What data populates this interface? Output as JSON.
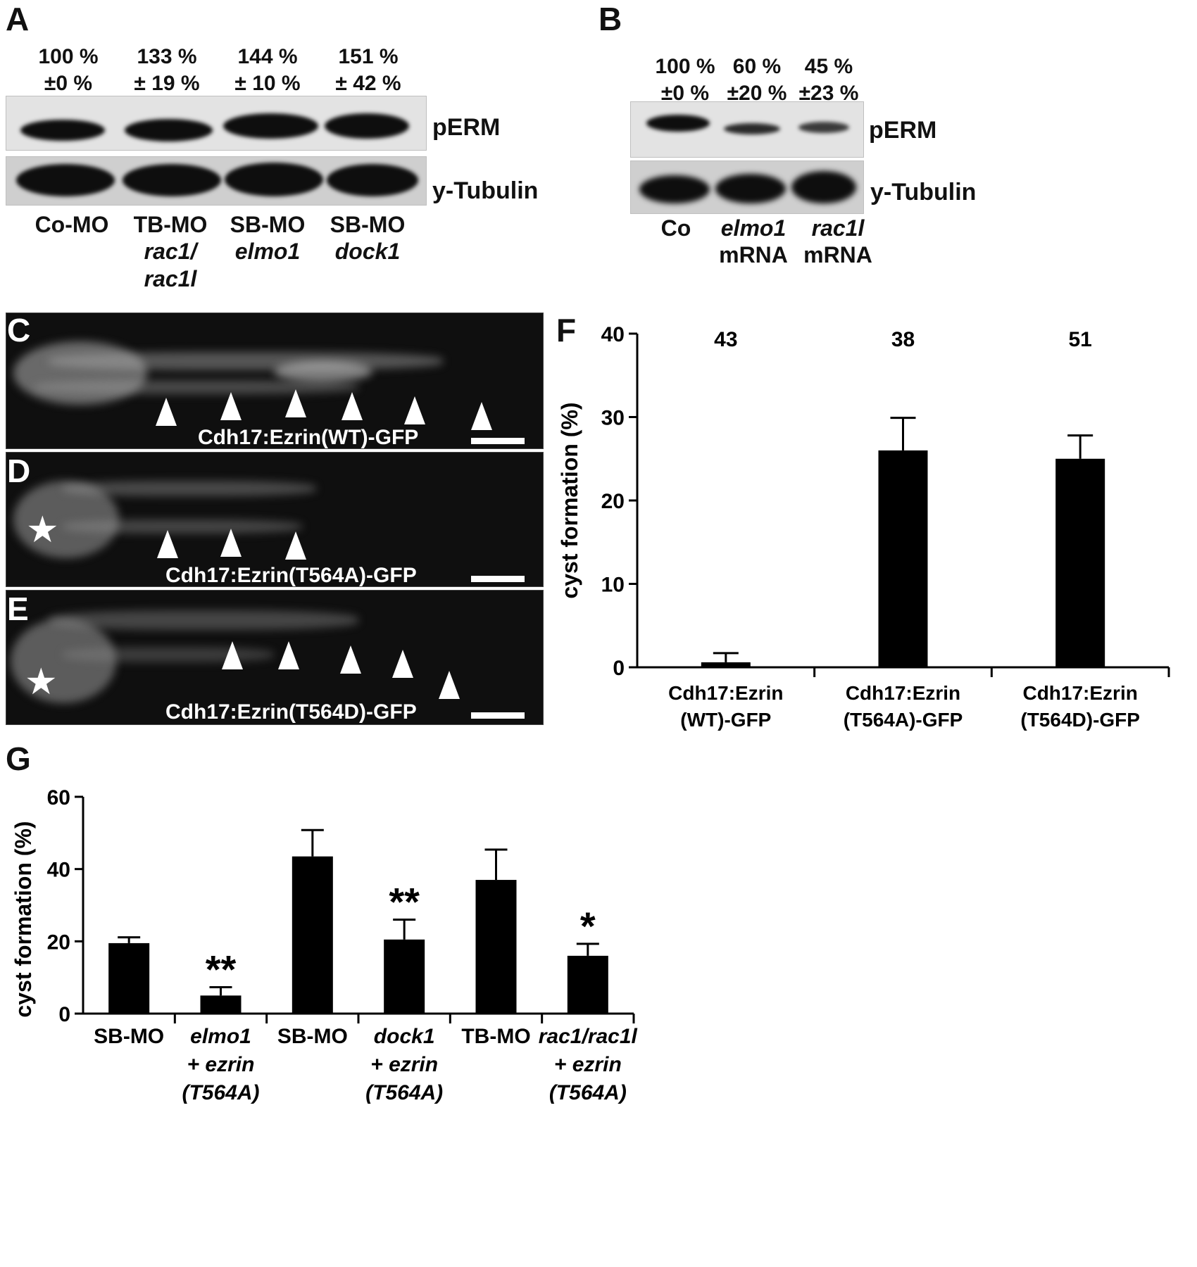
{
  "panel_a": {
    "letter": "A",
    "percentages": [
      {
        "value": "100 %",
        "sd": "±0 %"
      },
      {
        "value": "133 %",
        "sd": "± 19 %"
      },
      {
        "value": "144 %",
        "sd": "± 10 %"
      },
      {
        "value": "151 %",
        "sd": "± 42 %"
      }
    ],
    "blot_labels": {
      "top": "pERM",
      "bottom": "y-Tubulin"
    },
    "lanes": [
      {
        "line1": "Co-MO",
        "line2": "",
        "line3": ""
      },
      {
        "line1": "TB-MO",
        "line2": "rac1/",
        "line3": "rac1l"
      },
      {
        "line1": "SB-MO",
        "line2": "elmo1",
        "line3": ""
      },
      {
        "line1": "SB-MO",
        "line2": "dock1",
        "line3": ""
      }
    ]
  },
  "panel_b": {
    "letter": "B",
    "percentages": [
      {
        "value": "100 %",
        "sd": "±0 %"
      },
      {
        "value": "60 %",
        "sd": "±20 %"
      },
      {
        "value": "45 %",
        "sd": "±23 %"
      }
    ],
    "blot_labels": {
      "top": "pERM",
      "bottom": "y-Tubulin"
    },
    "lanes": [
      {
        "line1": "Co",
        "line2": ""
      },
      {
        "line1": "elmo1",
        "line2": "mRNA"
      },
      {
        "line1": "rac1l",
        "line2": "mRNA"
      }
    ]
  },
  "panel_c": {
    "letter": "C",
    "caption": "Cdh17:Ezrin(WT)-GFP"
  },
  "panel_d": {
    "letter": "D",
    "caption": "Cdh17:Ezrin(T564A)-GFP",
    "marker": "★"
  },
  "panel_e": {
    "letter": "E",
    "caption": "Cdh17:Ezrin(T564D)-GFP",
    "marker": "★"
  },
  "panel_f": {
    "letter": "F"
  },
  "panel_g": {
    "letter": "G"
  },
  "chart_data": [
    {
      "type": "bar",
      "panel": "F",
      "ylabel": "cyst formation (%)",
      "ylim": [
        0,
        40
      ],
      "yticks": [
        0,
        10,
        20,
        30,
        40
      ],
      "categories": [
        {
          "line1": "Cdh17:Ezrin",
          "line2": "(WT)-GFP"
        },
        {
          "line1": "Cdh17:Ezrin",
          "line2": "(T564A)-GFP"
        },
        {
          "line1": "Cdh17:Ezrin",
          "line2": "(T564D)-GFP"
        }
      ],
      "values": [
        0.6,
        26.0,
        25.0
      ],
      "errors": [
        1.1,
        3.9,
        2.8
      ],
      "n_labels": [
        "43",
        "38",
        "51"
      ],
      "colors": {
        "bar": "#000000"
      }
    },
    {
      "type": "bar",
      "panel": "G",
      "ylabel": "cyst formation (%)",
      "ylim": [
        0,
        60
      ],
      "yticks": [
        0,
        20,
        40,
        60
      ],
      "groups": [
        {
          "left": "SB-MO",
          "right": [
            "elmo1",
            "+ ezrin",
            "(T564A)"
          ]
        },
        {
          "left": "SB-MO",
          "right": [
            "dock1",
            "+ ezrin",
            "(T564A)"
          ]
        },
        {
          "left": "TB-MO",
          "right": [
            "rac1/rac1l",
            "+ ezrin",
            "(T564A)"
          ]
        }
      ],
      "values": [
        19.5,
        5.0,
        43.5,
        20.5,
        37.0,
        16.0
      ],
      "errors": [
        1.6,
        2.3,
        7.3,
        5.5,
        8.4,
        3.3
      ],
      "significance": [
        "",
        "**",
        "",
        "**",
        "",
        "*"
      ],
      "colors": {
        "bar": "#000000"
      }
    }
  ]
}
